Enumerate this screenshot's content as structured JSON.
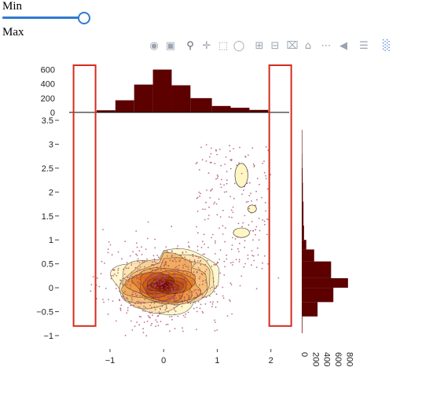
{
  "controls": {
    "min_label": "Min",
    "max_label": "Max",
    "slider": {
      "value_fraction": 1.0,
      "accent": "#2e7bd0"
    }
  },
  "toolbar": {
    "icons": [
      "camera-icon",
      "save-icon",
      "zoom-icon",
      "pan-icon",
      "box-select-icon",
      "lasso-icon",
      "zoom-in-icon",
      "zoom-out-icon",
      "autoscale-icon",
      "reset-icon",
      "spike-lines-icon",
      "hover-closest-icon",
      "hover-compare-icon",
      "plotly-logo-icon"
    ],
    "color": "#9aa3ae",
    "logo_color": "#3f7be0"
  },
  "chart_data": {
    "type": "scatter",
    "title": "",
    "xlabel": "",
    "ylabel": "",
    "xlim": [
      -1.85,
      2.4
    ],
    "ylim": [
      -1.05,
      3.55
    ],
    "x_ticks": [
      -1,
      0,
      1,
      2
    ],
    "y_ticks": [
      -1,
      -0.5,
      0,
      0.5,
      1,
      1.5,
      2,
      2.5,
      3,
      3.5
    ],
    "grid": false,
    "colors": {
      "histogram": "#5c0000",
      "points": "#b04a6a",
      "selection": "#d52b1e",
      "contour_low": "#fff6c4",
      "contour_high": "#7a0000"
    },
    "density_center": {
      "x": 0.0,
      "y": 0.05
    },
    "x_histogram": {
      "bins": [
        -1.25,
        -0.9,
        -0.55,
        -0.2,
        0.15,
        0.5,
        0.9,
        1.25,
        1.6,
        1.95
      ],
      "counts": [
        30,
        170,
        390,
        600,
        380,
        200,
        90,
        65,
        35
      ],
      "ticks": [
        0,
        200,
        400,
        600
      ]
    },
    "y_histogram": {
      "bins": [
        -0.95,
        -0.6,
        -0.3,
        0.0,
        0.2,
        0.55,
        0.8,
        1.0,
        1.3,
        1.8,
        2.2,
        2.5,
        2.8,
        3.3
      ],
      "counts": [
        10,
        280,
        560,
        820,
        520,
        220,
        80,
        40,
        30,
        20,
        15,
        10,
        8
      ],
      "ticks": [
        0,
        200,
        400,
        600,
        800
      ]
    },
    "selections": [
      {
        "x": [
          -1.68,
          -1.27
        ],
        "y": [
          -0.8,
          3.55
        ]
      },
      {
        "x": [
          1.97,
          2.38
        ],
        "y": [
          -0.8,
          3.55
        ]
      }
    ]
  }
}
